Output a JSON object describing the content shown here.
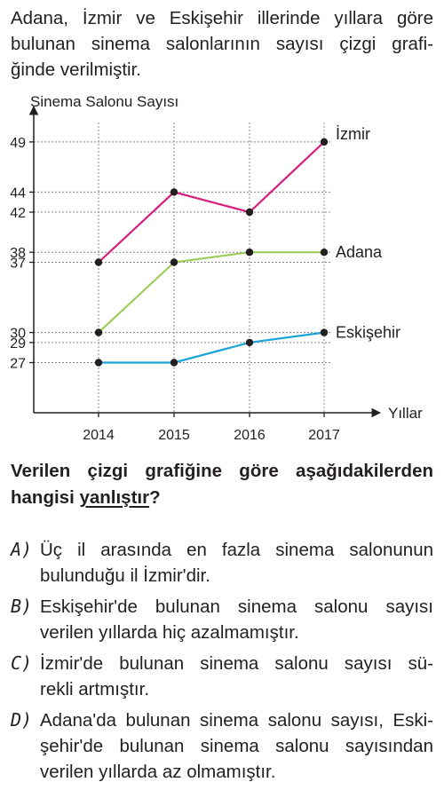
{
  "intro_lines": [
    "Adana, İzmir ve Eskişehir illerinde yıllara göre",
    "bulunan sinema salonlarının sayısı çizgi grafi-",
    "ğinde verilmiştir."
  ],
  "chart_data": {
    "type": "line",
    "ylabel": "Sinema Salonu Sayısı",
    "xlabel": "Yıllar",
    "categories": [
      "2014",
      "2015",
      "2016",
      "2017"
    ],
    "yticks": [
      27,
      29,
      30,
      37,
      38,
      42,
      44,
      49
    ],
    "ylim": [
      22,
      52
    ],
    "grid": true,
    "series": [
      {
        "name": "İzmir",
        "values": [
          37,
          44,
          42,
          49
        ],
        "color": "#d61f7b"
      },
      {
        "name": "Adana",
        "values": [
          30,
          37,
          38,
          38
        ],
        "color": "#9ccc5a"
      },
      {
        "name": "Eskişehir",
        "values": [
          27,
          27,
          29,
          30
        ],
        "color": "#1aa5d6"
      }
    ]
  },
  "question": {
    "line1": "Verilen çizgi grafiğine göre aşağıdakilerden",
    "line2_prefix": "hangisi ",
    "line2_underlined": "yanlıştır",
    "line2_suffix": "?"
  },
  "options": [
    {
      "letter": "A)",
      "lines": [
        "Üç il arasında en fazla sinema salonunun",
        "bulunduğu il İzmir'dir."
      ]
    },
    {
      "letter": "B)",
      "lines": [
        "Eskişehir'de bulunan sinema salonu sayısı",
        "verilen yıllarda hiç azalmamıştır."
      ]
    },
    {
      "letter": "C)",
      "lines": [
        "İzmir'de bulunan sinema salonu sayısı sü-",
        "rekli artmıştır."
      ]
    },
    {
      "letter": "D)",
      "lines": [
        "Adana'da bulunan sinema salonu sayısı, Eski-",
        "şehir'de bulunan sinema salonu sayısından",
        "verilen yıllarda az olmamıştır."
      ]
    }
  ]
}
